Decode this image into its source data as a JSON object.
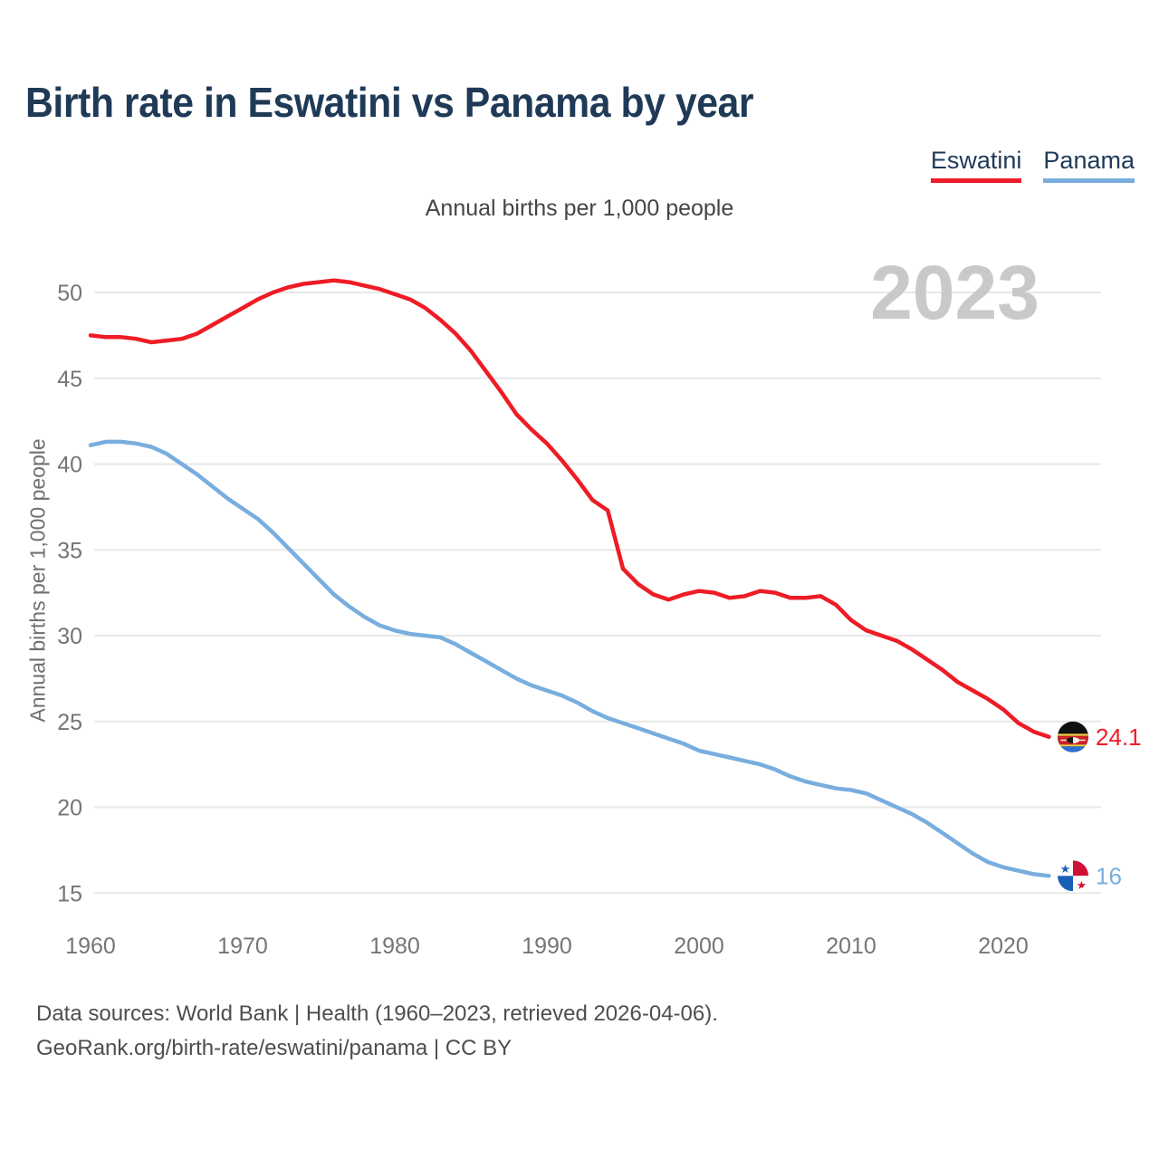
{
  "title": "Birth rate in Eswatini vs Panama by year",
  "subtitle": "Annual births per 1,000 people",
  "watermark": "2023",
  "y_axis_label": "Annual births per 1,000 people",
  "legend": [
    {
      "label": "Eswatini",
      "color": "#ee1c25"
    },
    {
      "label": "Panama",
      "color": "#78aede"
    }
  ],
  "footer": {
    "line1": "Data sources: World Bank | Health (1960–2023, retrieved 2026-04-06).",
    "line2": "GeoRank.org/birth-rate/eswatini/panama | CC BY"
  },
  "end_markers": [
    {
      "series": "Eswatini",
      "label": "24.1",
      "flag_icon": "eswatini-flag-icon"
    },
    {
      "series": "Panama",
      "label": "16",
      "flag_icon": "panama-flag-icon"
    }
  ],
  "chart_data": {
    "type": "line",
    "title": "Annual births per 1,000 people",
    "xlabel": "",
    "ylabel": "Annual births per 1,000 people",
    "grid": true,
    "legend_position": "top-right",
    "xlim": [
      1959.5,
      2026.5
    ],
    "ylim": [
      13.5,
      52
    ],
    "xticks": [
      1960,
      1970,
      1980,
      1990,
      2000,
      2010,
      2020
    ],
    "yticks": [
      15,
      20,
      25,
      30,
      35,
      40,
      45,
      50
    ],
    "years": [
      1960,
      1961,
      1962,
      1963,
      1964,
      1965,
      1966,
      1967,
      1968,
      1969,
      1970,
      1971,
      1972,
      1973,
      1974,
      1975,
      1976,
      1977,
      1978,
      1979,
      1980,
      1981,
      1982,
      1983,
      1984,
      1985,
      1986,
      1987,
      1988,
      1989,
      1990,
      1991,
      1992,
      1993,
      1994,
      1995,
      1996,
      1997,
      1998,
      1999,
      2000,
      2001,
      2002,
      2003,
      2004,
      2005,
      2006,
      2007,
      2008,
      2009,
      2010,
      2011,
      2012,
      2013,
      2014,
      2015,
      2016,
      2017,
      2018,
      2019,
      2020,
      2021,
      2022,
      2023
    ],
    "series": [
      {
        "name": "Eswatini",
        "color": "#ee1c25",
        "end_label": "24.1",
        "values": [
          47.5,
          47.4,
          47.4,
          47.3,
          47.1,
          47.2,
          47.3,
          47.6,
          48.1,
          48.6,
          49.1,
          49.6,
          50.0,
          50.3,
          50.5,
          50.6,
          50.7,
          50.6,
          50.4,
          50.2,
          49.9,
          49.6,
          49.1,
          48.4,
          47.6,
          46.6,
          45.4,
          44.2,
          42.9,
          42.0,
          41.2,
          40.2,
          39.1,
          37.9,
          37.3,
          33.9,
          33.0,
          32.4,
          32.1,
          32.4,
          32.6,
          32.5,
          32.2,
          32.3,
          32.6,
          32.5,
          32.2,
          32.2,
          32.3,
          31.8,
          30.9,
          30.3,
          30.0,
          29.7,
          29.2,
          28.6,
          28.0,
          27.3,
          26.8,
          26.3,
          25.7,
          24.9,
          24.4,
          24.1
        ]
      },
      {
        "name": "Panama",
        "color": "#78aede",
        "end_label": "16",
        "values": [
          41.1,
          41.3,
          41.3,
          41.2,
          41.0,
          40.6,
          40.0,
          39.4,
          38.7,
          38.0,
          37.4,
          36.8,
          36.0,
          35.1,
          34.2,
          33.3,
          32.4,
          31.7,
          31.1,
          30.6,
          30.3,
          30.1,
          30.0,
          29.9,
          29.5,
          29.0,
          28.5,
          28.0,
          27.5,
          27.1,
          26.8,
          26.5,
          26.1,
          25.6,
          25.2,
          24.9,
          24.6,
          24.3,
          24.0,
          23.7,
          23.3,
          23.1,
          22.9,
          22.7,
          22.5,
          22.2,
          21.8,
          21.5,
          21.3,
          21.1,
          21.0,
          20.8,
          20.4,
          20.0,
          19.6,
          19.1,
          18.5,
          17.9,
          17.3,
          16.8,
          16.5,
          16.3,
          16.1,
          16.0
        ]
      }
    ]
  }
}
